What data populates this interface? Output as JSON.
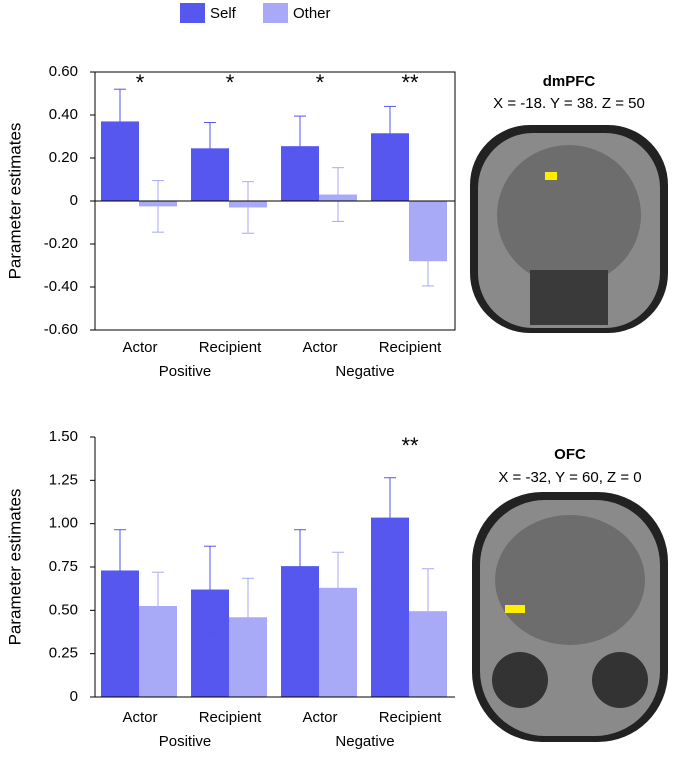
{
  "chart_data": [
    {
      "type": "bar",
      "ylabel": "Parameter estimates",
      "categories": [
        "Actor",
        "Recipient",
        "Actor",
        "Recipient"
      ],
      "groups": [
        "Positive",
        "Negative"
      ],
      "series": [
        {
          "name": "Self",
          "color": "#5557ee",
          "values": [
            0.37,
            0.245,
            0.255,
            0.315
          ],
          "errors": [
            0.15,
            0.12,
            0.14,
            0.125
          ]
        },
        {
          "name": "Other",
          "color": "#a8aaf7",
          "values": [
            -0.025,
            -0.03,
            0.03,
            -0.28
          ],
          "errors": [
            0.12,
            0.12,
            0.125,
            0.115
          ]
        }
      ],
      "annotations": [
        {
          "category_index": 0,
          "text": "*"
        },
        {
          "category_index": 1,
          "text": "*"
        },
        {
          "category_index": 2,
          "text": "*"
        },
        {
          "category_index": 3,
          "text": "**"
        }
      ],
      "ylim": [
        -0.6,
        0.6
      ],
      "yticks": [
        {
          "value": -0.6,
          "label": "-0.60"
        },
        {
          "value": -0.4,
          "label": "-0.40"
        },
        {
          "value": -0.2,
          "label": "-0.20"
        },
        0,
        {
          "value": 0.2,
          "label": "0.20"
        },
        {
          "value": 0.4,
          "label": "0.40"
        },
        {
          "value": 0.6,
          "label": "0.60"
        }
      ],
      "frame": true,
      "image_title": "dmPFC",
      "image_caption": "X = -18. Y = 38. Z = 50"
    },
    {
      "type": "bar",
      "ylabel": "Parameter estimates",
      "categories": [
        "Actor",
        "Recipient",
        "Actor",
        "Recipient"
      ],
      "groups": [
        "Positive",
        "Negative"
      ],
      "series": [
        {
          "name": "Self",
          "color": "#5557ee",
          "values": [
            0.73,
            0.62,
            0.755,
            1.035
          ],
          "errors": [
            0.235,
            0.25,
            0.21,
            0.23
          ]
        },
        {
          "name": "Other",
          "color": "#a8aaf7",
          "values": [
            0.525,
            0.46,
            0.63,
            0.495
          ],
          "errors": [
            0.195,
            0.225,
            0.205,
            0.245
          ]
        }
      ],
      "annotations": [
        {
          "category_index": 3,
          "text": "**"
        }
      ],
      "ylim": [
        0,
        1.5
      ],
      "yticks": [
        0,
        0.25,
        {
          "value": 0.5,
          "label": "0.50"
        },
        0.75,
        {
          "value": 1,
          "label": "1.00"
        },
        1.25,
        {
          "value": 1.5,
          "label": "1.50"
        }
      ],
      "frame": false,
      "image_title": "OFC",
      "image_caption": "X = -32, Y = 60, Z = 0"
    }
  ]
}
